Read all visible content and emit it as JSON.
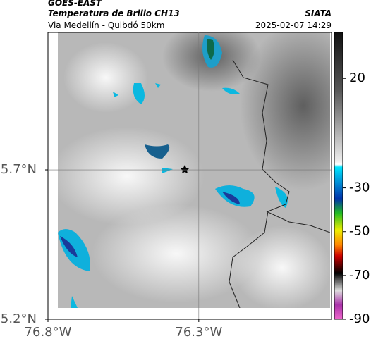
{
  "header": {
    "title": "GOES-EAST",
    "subtitle": "Temperatura de Brillo CH13",
    "location": "Via Medellín - Quibdó 50km",
    "source": "SIATA",
    "timestamp": "2025-02-07 14:29"
  },
  "map": {
    "xlim": [
      -76.8,
      -75.86
    ],
    "ylim": [
      5.2,
      6.16
    ],
    "xticks": [
      {
        "value": -76.8,
        "label": "76.8°W"
      },
      {
        "value": -76.3,
        "label": "76.3°W"
      }
    ],
    "yticks": [
      {
        "value": 5.2,
        "label": "5.2°N"
      },
      {
        "value": 5.7,
        "label": "5.7°N"
      }
    ],
    "grid": true
  },
  "colorbar": {
    "clim": [
      -90,
      41
    ],
    "ticks": [
      20,
      -30,
      -50,
      -70,
      -90
    ]
  }
}
